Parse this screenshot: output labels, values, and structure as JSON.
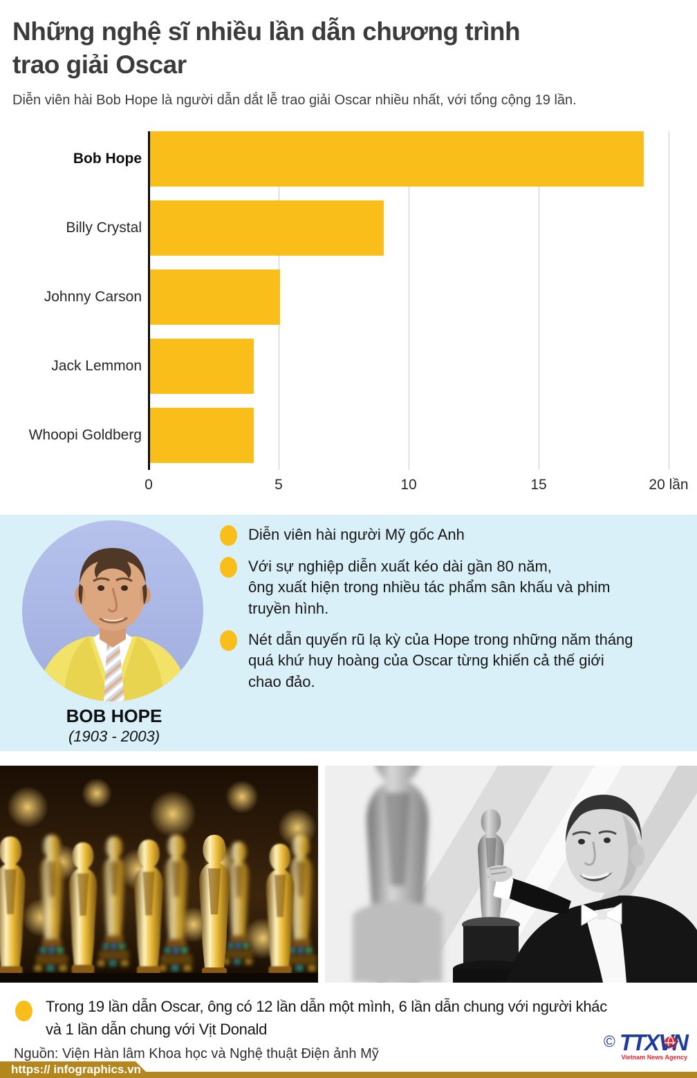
{
  "header": {
    "title": "Những nghệ sĩ nhiều lần dẫn chương trình\ntrao giải Oscar",
    "subtitle": "Diễn viên hài Bob Hope  là người dẫn dắt lễ trao giải Oscar nhiều nhất, với tổng cộng 19 lần."
  },
  "chart_data": {
    "type": "bar",
    "orientation": "horizontal",
    "categories": [
      "Bob Hope",
      "Billy Crystal",
      "Johnny Carson",
      "Jack Lemmon",
      "Whoopi Goldberg"
    ],
    "values": [
      19,
      9,
      5,
      4,
      4
    ],
    "xlim": [
      0,
      20
    ],
    "x_ticks": [
      0,
      5,
      10,
      15,
      20
    ],
    "x_unit": "lần",
    "grid": true,
    "legend": false,
    "bold_category": "Bob Hope",
    "bar_color": "#F9BE19"
  },
  "profile": {
    "name": "BOB HOPE",
    "years": "(1903 - 2003)",
    "bullets": [
      "Diễn viên hài người Mỹ gốc Anh",
      "Với sự nghiệp diễn xuất kéo dài gần 80 năm,\nông xuất hiện trong nhiều tác phẩm sân khấu và phim\ntruyền hình.",
      "Nét dẫn quyến rũ lạ kỳ của Hope trong những năm tháng\nquá khứ huy hoàng của Oscar từng khiến cả thế giới\nchao đảo."
    ]
  },
  "photos": {
    "left_alt": "Hàng tượng vàng Oscar",
    "right_alt": "Bob Hope bên tượng Oscar"
  },
  "footnote": {
    "text": "Trong 19 lần dẫn Oscar, ông có 12 lần dẫn một mình, 6 lần dẫn chung với người khác\nvà 1 lần dẫn chung với Vịt Donald",
    "source": "Nguồn: Viện Hàn lâm Khoa học và Nghệ thuật Điện ảnh Mỹ"
  },
  "footer": {
    "url": "https:// infographics.vn",
    "copyright": "©",
    "agency": "TTXVN",
    "agency_sub": "Vietnam News Agency"
  },
  "colors": {
    "accent_yellow": "#F9BE19",
    "panel_blue": "#D9F0F9",
    "footer_gold": "#B3871E",
    "logo_blue": "#1E3D9B",
    "logo_red": "#E62129"
  }
}
